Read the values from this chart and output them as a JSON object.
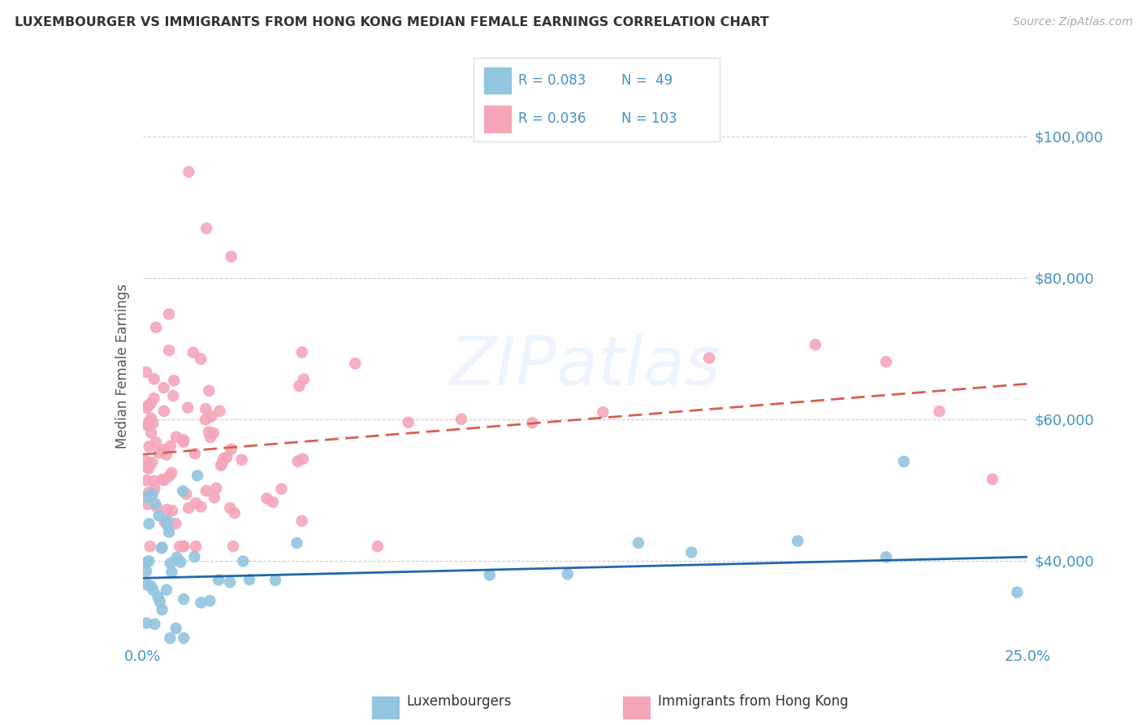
{
  "title": "LUXEMBOURGER VS IMMIGRANTS FROM HONG KONG MEDIAN FEMALE EARNINGS CORRELATION CHART",
  "source": "Source: ZipAtlas.com",
  "ylabel": "Median Female Earnings",
  "xlim": [
    0.0,
    0.25
  ],
  "ylim": [
    28000,
    107000
  ],
  "yticks": [
    40000,
    60000,
    80000,
    100000
  ],
  "ytick_labels": [
    "$40,000",
    "$60,000",
    "$80,000",
    "$100,000"
  ],
  "blue_color": "#92c5de",
  "pink_color": "#f4a6b8",
  "blue_line_color": "#2166ac",
  "pink_line_color": "#d6604d",
  "axis_label_color": "#4393c3",
  "text_color": "#555555",
  "watermark": "ZIPatlas",
  "legend_label1": "Luxembourgers",
  "legend_label2": "Immigrants from Hong Kong",
  "blue_r": "R = 0.083",
  "blue_n": "N =  49",
  "pink_r": "R = 0.036",
  "pink_n": "N = 103"
}
